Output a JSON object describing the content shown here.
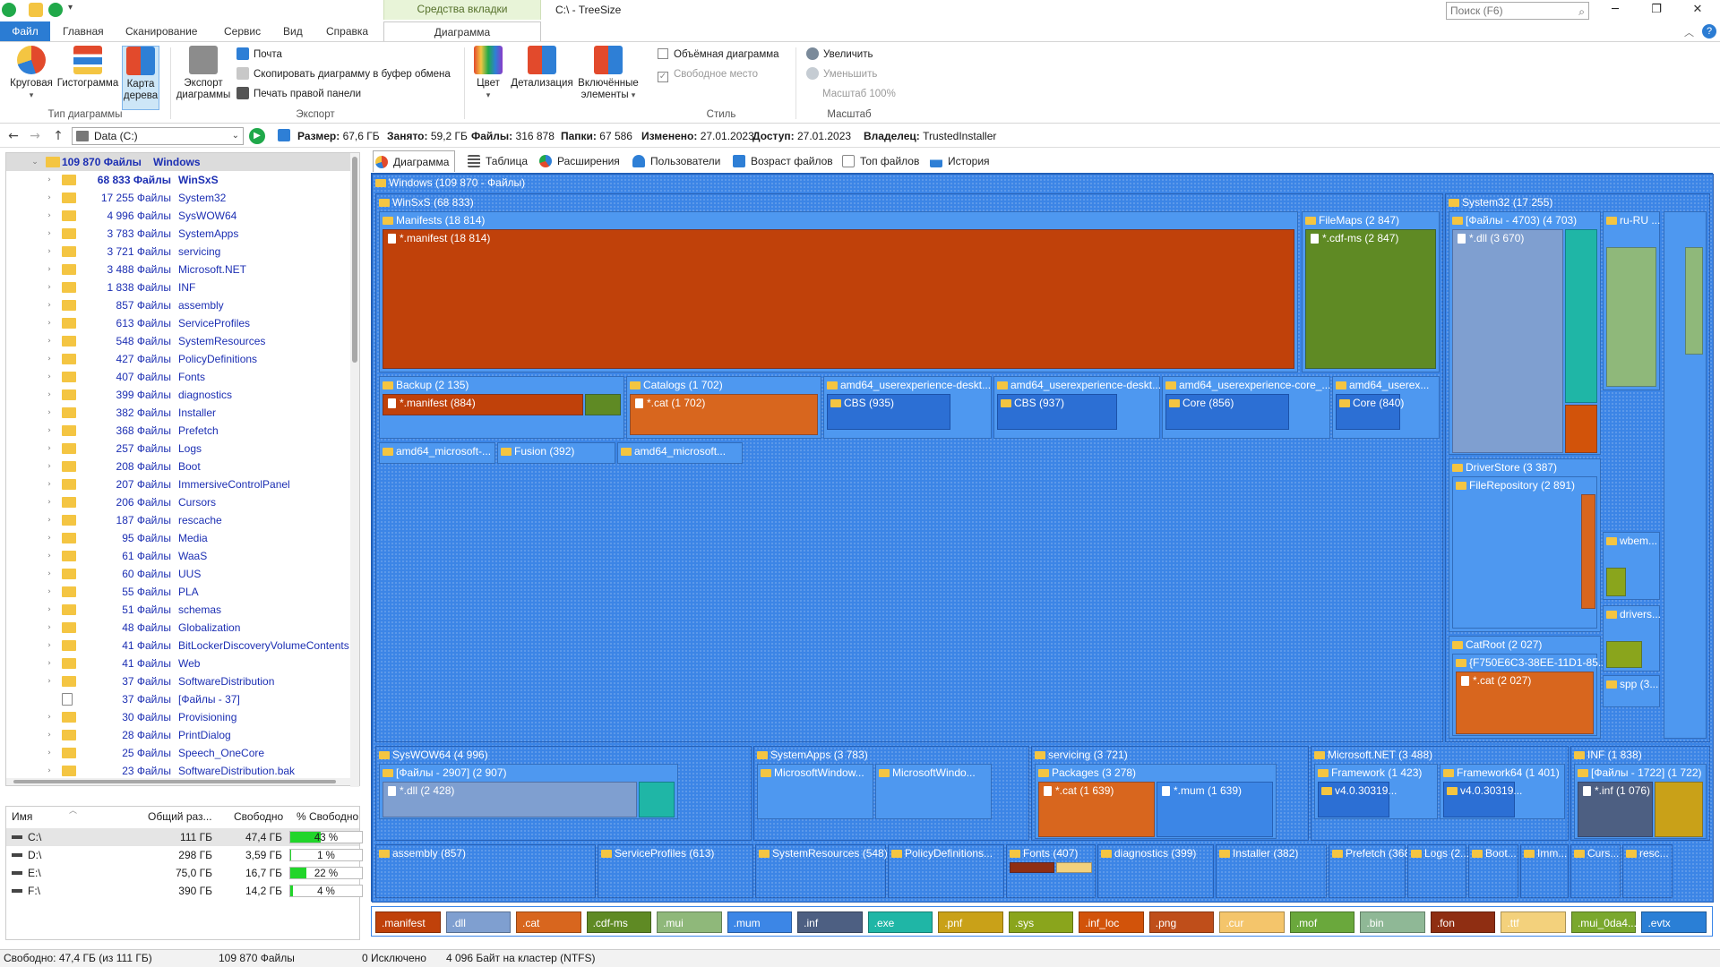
{
  "title_bar": {
    "context_tab_group": "Средства вкладки \"Диаграмма\"",
    "window_title": "C:\\ - TreeSize",
    "search_placeholder": "Поиск (F6)"
  },
  "ribbon_tabs": {
    "file": "Файл",
    "home": "Главная",
    "scan": "Сканирование",
    "service": "Сервис",
    "view": "Вид",
    "help": "Справка",
    "diagram": "Диаграмма"
  },
  "ribbon": {
    "chart_type": {
      "pie": "Круговая",
      "histogram": "Гистограмма",
      "treemap_line1": "Карта",
      "treemap_line2": "дерева",
      "group_label": "Тип диаграммы"
    },
    "export": {
      "export_line1": "Экспорт",
      "export_line2": "диаграммы",
      "mail": "Почта",
      "copy_clipboard": "Скопировать диаграмму в буфер обмена",
      "print_right": "Печать правой панели",
      "group_label": "Экспорт"
    },
    "style": {
      "color": "Цвет",
      "detail": "Детализация",
      "included_line1": "Включённые",
      "included_line2": "элементы",
      "three_d": "Объёмная диаграмма",
      "free_space": "Свободное место",
      "group_label": "Стиль"
    },
    "scale": {
      "zoom_in": "Увеличить",
      "zoom_out": "Уменьшить",
      "scale_value": "Масштаб 100%",
      "group_label": "Масштаб"
    }
  },
  "address_bar": {
    "drive": "Data (C:)",
    "size_label": "Размер:",
    "size_value": "67,6 ГБ",
    "allocated_label": "Занято:",
    "allocated_value": "59,2 ГБ",
    "files_label": "Файлы:",
    "files_value": "316 878",
    "folders_label": "Папки:",
    "folders_value": "67 586",
    "modified_label": "Изменено:",
    "modified_value": "27.01.2023",
    "access_label": "Доступ:",
    "access_value": "27.01.2023",
    "owner_label": "Владелец:",
    "owner_value": "TrustedInstaller"
  },
  "tree": {
    "root": {
      "count": "109 870 Файлы",
      "name": "Windows"
    },
    "items": [
      {
        "count": "68 833 Файлы",
        "name": "WinSxS",
        "bold": true
      },
      {
        "count": "17 255 Файлы",
        "name": "System32"
      },
      {
        "count": "4 996 Файлы",
        "name": "SysWOW64"
      },
      {
        "count": "3 783 Файлы",
        "name": "SystemApps"
      },
      {
        "count": "3 721 Файлы",
        "name": "servicing"
      },
      {
        "count": "3 488 Файлы",
        "name": "Microsoft.NET"
      },
      {
        "count": "1 838 Файлы",
        "name": "INF"
      },
      {
        "count": "857 Файлы",
        "name": "assembly"
      },
      {
        "count": "613 Файлы",
        "name": "ServiceProfiles"
      },
      {
        "count": "548 Файлы",
        "name": "SystemResources"
      },
      {
        "count": "427 Файлы",
        "name": "PolicyDefinitions"
      },
      {
        "count": "407 Файлы",
        "name": "Fonts"
      },
      {
        "count": "399 Файлы",
        "name": "diagnostics"
      },
      {
        "count": "382 Файлы",
        "name": "Installer"
      },
      {
        "count": "368 Файлы",
        "name": "Prefetch"
      },
      {
        "count": "257 Файлы",
        "name": "Logs"
      },
      {
        "count": "208 Файлы",
        "name": "Boot"
      },
      {
        "count": "207 Файлы",
        "name": "ImmersiveControlPanel"
      },
      {
        "count": "206 Файлы",
        "name": "Cursors"
      },
      {
        "count": "187 Файлы",
        "name": "rescache"
      },
      {
        "count": "95 Файлы",
        "name": "Media"
      },
      {
        "count": "61 Файлы",
        "name": "WaaS"
      },
      {
        "count": "60 Файлы",
        "name": "UUS"
      },
      {
        "count": "55 Файлы",
        "name": "PLA"
      },
      {
        "count": "51 Файлы",
        "name": "schemas"
      },
      {
        "count": "48 Файлы",
        "name": "Globalization"
      },
      {
        "count": "41 Файлы",
        "name": "BitLockerDiscoveryVolumeContents"
      },
      {
        "count": "41 Файлы",
        "name": "Web"
      },
      {
        "count": "37 Файлы",
        "name": "SoftwareDistribution"
      },
      {
        "count": "37 Файлы",
        "name": "[Файлы - 37]",
        "file": true
      },
      {
        "count": "30 Файлы",
        "name": "Provisioning"
      },
      {
        "count": "28 Файлы",
        "name": "PrintDialog"
      },
      {
        "count": "25 Файлы",
        "name": "Speech_OneCore"
      },
      {
        "count": "23 Файлы",
        "name": "SoftwareDistribution.bak"
      }
    ]
  },
  "drives": {
    "headers": {
      "name": "Имя",
      "total": "Общий раз...",
      "free": "Свободно",
      "pct_free": "% Свободно"
    },
    "rows": [
      {
        "name": "C:\\",
        "total": "111 ГБ",
        "free": "47,4 ГБ",
        "pct": "43 %",
        "pct_value": 43
      },
      {
        "name": "D:\\",
        "total": "298 ГБ",
        "free": "3,59 ГБ",
        "pct": "1 %",
        "pct_value": 1
      },
      {
        "name": "E:\\",
        "total": "75,0 ГБ",
        "free": "16,7 ГБ",
        "pct": "22 %",
        "pct_value": 22
      },
      {
        "name": "F:\\",
        "total": "390 ГБ",
        "free": "14,2 ГБ",
        "pct": "4 %",
        "pct_value": 4
      }
    ]
  },
  "content_tabs": {
    "diagram": "Диаграмма",
    "table": "Таблица",
    "extensions": "Расширения",
    "users": "Пользователи",
    "age": "Возраст файлов",
    "top_files": "Топ файлов",
    "history": "История"
  },
  "treemap": {
    "root": "Windows (109 870 - Файлы)",
    "winsxs": "WinSxS (68 833)",
    "manifests": "Manifests (18 814)",
    "manifest_files": "*.manifest (18 814)",
    "filemaps": "FileMaps (2 847)",
    "cdf_files": "*.cdf-ms (2 847)",
    "backup": "Backup (2 135)",
    "backup_manifest": "*.manifest (884)",
    "catalogs": "Catalogs (1 702)",
    "cat_files": "*.cat (1 702)",
    "amd1": "amd64_userexperience-deskt...",
    "amd2": "amd64_userexperience-deskt...",
    "amd3": "amd64_userexperience-core_...",
    "amd4": "amd64_userex...",
    "cbs1": "CBS (935)",
    "cbs2": "CBS (937)",
    "core1": "Core (856)",
    "core2": "Core (840)",
    "fusion": "Fusion (392)",
    "amd_ms1": "amd64_microsoft-...",
    "amd_ms2": "amd64_microsoft...",
    "system32": "System32 (17 255)",
    "sys32_files": "[Файлы - 4703) (4 703)",
    "sys32_dll": "*.dll (3 670)",
    "ru_ru": "ru-RU ...",
    "driverstore": "DriverStore (3 387)",
    "filerepo": "FileRepository (2 891)",
    "catroot": "CatRoot (2 027)",
    "catroot_guid": "{F750E6C3-38EE-11D1-85...",
    "catroot_cat": "*.cat (2 027)",
    "wbem": "wbem...",
    "drivers": "drivers...",
    "spp": "spp (3...",
    "syswow": "SysWOW64 (4 996)",
    "syswow_files": "[Файлы - 2907] (2 907)",
    "syswow_dll": "*.dll (2 428)",
    "systemapps": "SystemApps (3 783)",
    "ms_window1": "MicrosoftWindow...",
    "ms_window2": "MicrosoftWindo...",
    "servicing": "servicing (3 721)",
    "packages": "Packages (3 278)",
    "pkg_cat": "*.cat (1 639)",
    "pkg_mum": "*.mum (1 639)",
    "microsoftnet": "Microsoft.NET (3 488)",
    "framework": "Framework (1 423)",
    "framework64": "Framework64 (1 401)",
    "v4_1": "v4.0.30319...",
    "v4_2": "v4.0.30319...",
    "inf": "INF (1 838)",
    "inf_files": "[Файлы - 1722] (1 722)",
    "inf_inf": "*.inf (1 076)",
    "assembly": "assembly (857)",
    "serviceprofiles": "ServiceProfiles (613)",
    "systemresources": "SystemResources (548)",
    "policydefs": "PolicyDefinitions...",
    "fonts": "Fonts (407)",
    "diagnostics": "diagnostics (399)",
    "installer": "Installer (382)",
    "prefetch": "Prefetch (368)",
    "logs": "Logs (2...",
    "boot": "Boot...",
    "imm": "Imm...",
    "curs": "Curs...",
    "resc": "resc..."
  },
  "legend": [
    {
      "ext": ".manifest",
      "color": "#c0410a"
    },
    {
      "ext": ".dll",
      "color": "#7f9fd0"
    },
    {
      "ext": ".cat",
      "color": "#d8661e"
    },
    {
      "ext": ".cdf-ms",
      "color": "#5f8a24"
    },
    {
      "ext": ".mui",
      "color": "#8fb87a"
    },
    {
      "ext": ".mum",
      "color": "#3c86e6"
    },
    {
      "ext": ".inf",
      "color": "#4d5f82"
    },
    {
      "ext": ".exe",
      "color": "#1fb6a6"
    },
    {
      "ext": ".pnf",
      "color": "#c9a118"
    },
    {
      "ext": ".sys",
      "color": "#8aa51c"
    },
    {
      "ext": ".inf_loc",
      "color": "#d2530a"
    },
    {
      "ext": ".png",
      "color": "#bf4e1a"
    },
    {
      "ext": ".cur",
      "color": "#f4c56b"
    },
    {
      "ext": ".mof",
      "color": "#6aa83c"
    },
    {
      "ext": ".bin",
      "color": "#8fb896"
    },
    {
      "ext": ".fon",
      "color": "#8f2e12"
    },
    {
      "ext": ".ttf",
      "color": "#f3d17c"
    },
    {
      "ext": ".mui_0da4...",
      "color": "#7aa82e"
    },
    {
      "ext": ".evtx",
      "color": "#2a7fd6"
    }
  ],
  "status_bar": {
    "free": "Свободно: 47,4 ГБ  (из 111 ГБ)",
    "files": "109 870 Файлы",
    "excluded": "0 Исключено",
    "cluster": "4 096 Байт на кластер (NTFS)"
  }
}
